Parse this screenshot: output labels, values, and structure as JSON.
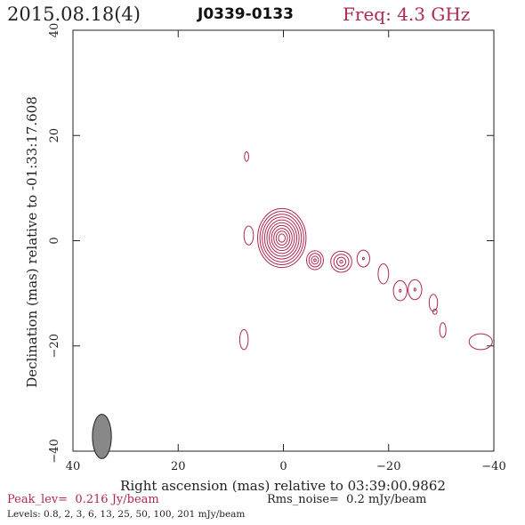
{
  "header": {
    "date": "2015.08.18(4)",
    "source": "J0339-0133",
    "freq_label": "Freq:",
    "freq_value": "4.3 GHz"
  },
  "chart_data": {
    "type": "contour",
    "xlabel": "Right ascension (mas) relative to 03:39:00.9862",
    "ylabel": "Declination (mas) relative to -01:33:17.608",
    "xlim": [
      40,
      -40
    ],
    "ylim": [
      -40,
      40
    ],
    "x_ticks": [
      40,
      20,
      0,
      -20,
      -40
    ],
    "y_ticks": [
      -40,
      -20,
      0,
      20,
      40
    ],
    "x_tick_labels": [
      "40",
      "20",
      "0",
      "−20",
      "−40"
    ],
    "y_tick_labels": [
      "−40",
      "−20",
      "0",
      "20",
      "40"
    ],
    "contour_color": "#b0284f",
    "beam": {
      "center": [
        34.5,
        -37.2
      ],
      "major_mas": 4.2,
      "minor_mas": 1.8,
      "pa_deg": 0,
      "color": "#888888"
    },
    "components": [
      {
        "x": 0.3,
        "y": 0.5,
        "rx": 4.6,
        "ry": 5.6,
        "contours": 10
      },
      {
        "x": -6.0,
        "y": -3.7,
        "rx": 1.6,
        "ry": 1.8,
        "contours": 4
      },
      {
        "x": -11.0,
        "y": -4.0,
        "rx": 2.0,
        "ry": 2.0,
        "contours": 4
      },
      {
        "x": -15.2,
        "y": -3.4,
        "rx": 1.2,
        "ry": 1.6,
        "contours": 2
      },
      {
        "x": -19.0,
        "y": -6.3,
        "rx": 1.0,
        "ry": 1.9,
        "contours": 1
      },
      {
        "x": -22.2,
        "y": -9.5,
        "rx": 1.3,
        "ry": 1.9,
        "contours": 2
      },
      {
        "x": -25.0,
        "y": -9.3,
        "rx": 1.3,
        "ry": 1.9,
        "contours": 2
      },
      {
        "x": -28.5,
        "y": -11.8,
        "rx": 0.8,
        "ry": 1.6,
        "contours": 1
      },
      {
        "x": -30.3,
        "y": -17.0,
        "rx": 0.6,
        "ry": 1.4,
        "contours": 1
      },
      {
        "x": -28.8,
        "y": -13.5,
        "rx": 0.4,
        "ry": 0.5,
        "contours": 1
      },
      {
        "x": 7.5,
        "y": -18.8,
        "rx": 0.8,
        "ry": 1.9,
        "contours": 1
      },
      {
        "x": 7.0,
        "y": 16.0,
        "rx": 0.4,
        "ry": 0.9,
        "contours": 1
      },
      {
        "x": 6.6,
        "y": 1.0,
        "rx": 0.9,
        "ry": 1.8,
        "contours": 1
      },
      {
        "x": -37.5,
        "y": -19.2,
        "rx": 2.2,
        "ry": 1.5,
        "contours": 1
      }
    ]
  },
  "footer": {
    "peak_label": "Peak_lev=",
    "peak_value": "0.216 Jy/beam",
    "rms_label": "Rms_noise=",
    "rms_value": "0.2 mJy/beam",
    "levels": "Levels: 0.8,   2,   3,   6,  13,  25,  50, 100, 201 mJy/beam"
  }
}
